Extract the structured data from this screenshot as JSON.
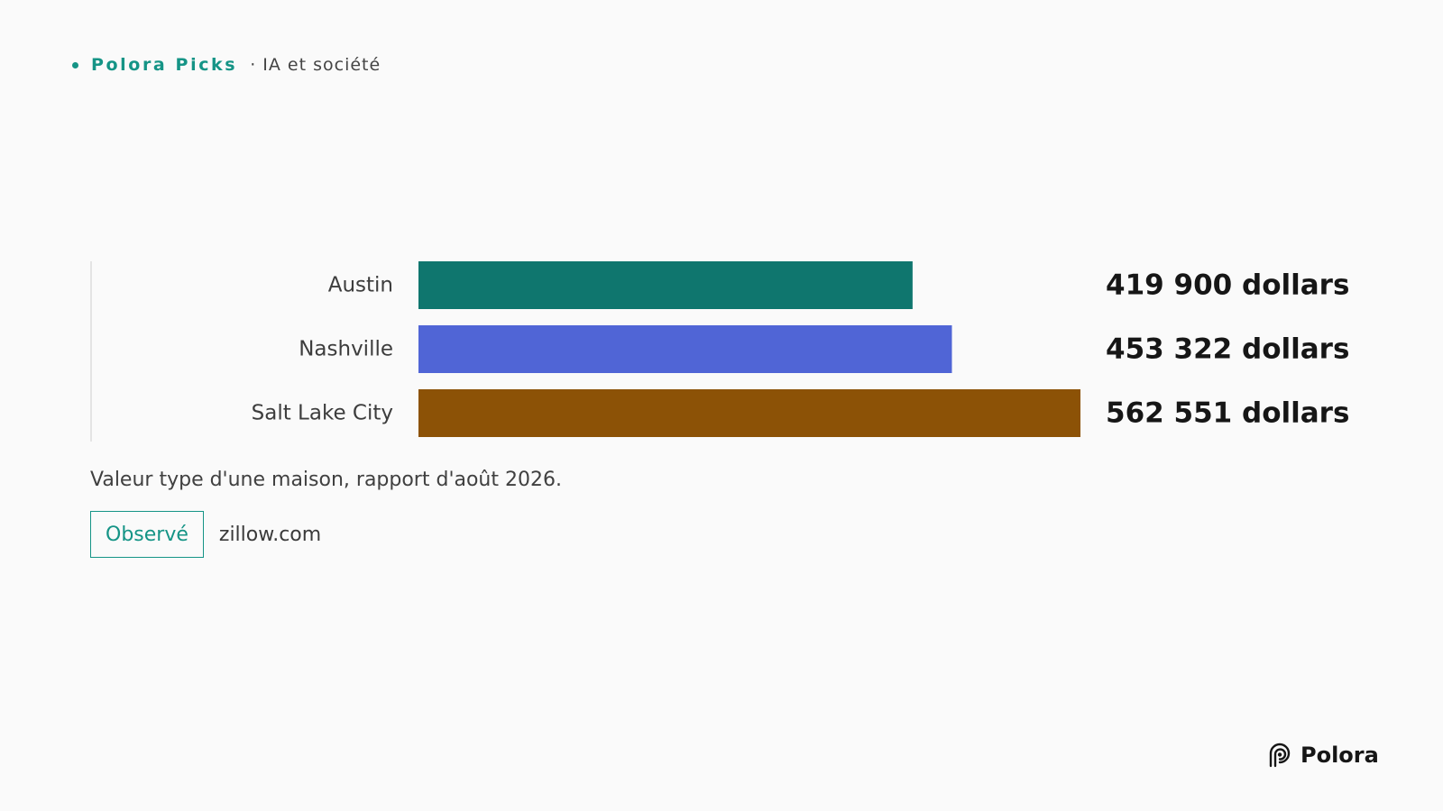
{
  "header": {
    "brand": "Polora Picks",
    "section": "· IA et société",
    "accent_color": "#159486"
  },
  "chart_data": {
    "type": "bar",
    "orientation": "horizontal",
    "categories": [
      "Austin",
      "Nashville",
      "Salt Lake City"
    ],
    "values": [
      419900,
      453322,
      562551
    ],
    "value_labels": [
      "419 900 dollars",
      "453 322 dollars",
      "562 551 dollars"
    ],
    "colors": [
      "#0f766e",
      "#5065d6",
      "#8c5206"
    ],
    "xlim": [
      0,
      562551
    ],
    "grid": false,
    "legend": "none"
  },
  "caption": "Valeur type d'une maison, rapport d'août 2026.",
  "source": {
    "badge": "Observé",
    "text": "zillow.com"
  },
  "logo": {
    "text": "Polora",
    "icon": "polora-logo-icon"
  }
}
